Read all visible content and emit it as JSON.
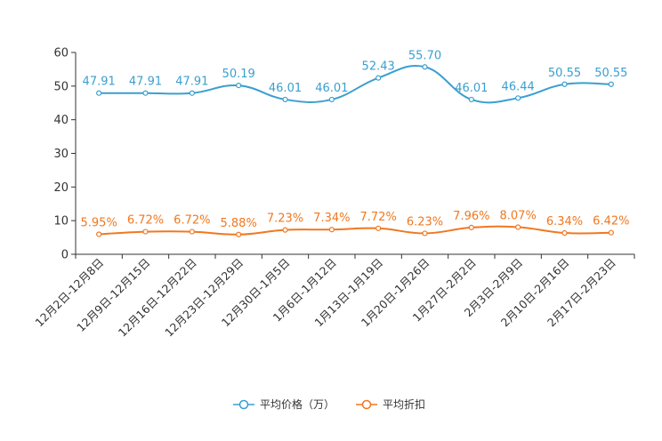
{
  "chart_data": {
    "type": "line",
    "categories": [
      "12月2日-12月8日",
      "12月9日-12月15日",
      "12月16日-12月22日",
      "12月23日-12月29日",
      "12月30日-1月5日",
      "1月6日-1月12日",
      "1月13日-1月19日",
      "1月20日-1月26日",
      "1月27日-2月2日",
      "2月3日-2月9日",
      "2月10日-2月16日",
      "2月17日-2月23日"
    ],
    "series": [
      {
        "name": "平均价格（万）",
        "color": "#3a9fd0",
        "values": [
          47.91,
          47.91,
          47.91,
          50.19,
          46.01,
          46.01,
          52.43,
          55.7,
          46.01,
          46.44,
          50.55,
          50.55
        ],
        "labels": [
          "47.91",
          "47.91",
          "47.91",
          "50.19",
          "46.01",
          "46.01",
          "52.43",
          "55.70",
          "46.01",
          "46.44",
          "50.55",
          "50.55"
        ]
      },
      {
        "name": "平均折扣",
        "color": "#f07820",
        "values": [
          5.95,
          6.72,
          6.72,
          5.88,
          7.23,
          7.34,
          7.72,
          6.23,
          7.96,
          8.07,
          6.34,
          6.42
        ],
        "labels": [
          "5.95%",
          "6.72%",
          "6.72%",
          "5.88%",
          "7.23%",
          "7.34%",
          "7.72%",
          "6.23%",
          "7.96%",
          "8.07%",
          "6.34%",
          "6.42%"
        ]
      }
    ],
    "yticks": [
      "0",
      "10",
      "20",
      "30",
      "40",
      "50",
      "60"
    ],
    "ylim": [
      0,
      60
    ],
    "title": "",
    "xlabel": "",
    "ylabel": "",
    "legend_position": "bottom-center"
  }
}
